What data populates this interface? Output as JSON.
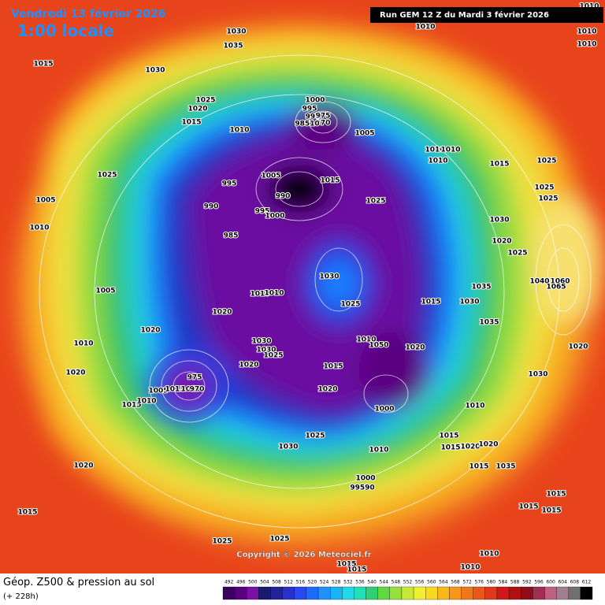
{
  "header": {
    "date": "Vendredi 13 février 2026",
    "time": "1:00 locale",
    "run": "Run GEM 12 Z du Mardi 3 février 2026"
  },
  "map": {
    "copyright": "Copyright © 2026 Meteociel.fr",
    "isobar_labels": [
      "1030",
      "1035",
      "1010",
      "1010",
      "1010",
      "1010",
      "1015",
      "1030",
      "1025",
      "1020",
      "1015",
      "1000",
      "995",
      "990",
      "975",
      "970",
      "98510",
      "1010",
      "1005",
      "1010",
      "1010",
      "1010",
      "1015",
      "1025",
      "1025",
      "995",
      "1005",
      "1015",
      "990",
      "1025",
      "1025",
      "1005",
      "990",
      "995",
      "1000",
      "1025",
      "1010",
      "985",
      "1030",
      "1020",
      "1025",
      "1030",
      "1040",
      "1060",
      "1065",
      "1035",
      "1005",
      "1010",
      "1010",
      "1015",
      "1030",
      "1025",
      "1020",
      "1035",
      "1020",
      "1030",
      "1010",
      "1050",
      "1010",
      "1030",
      "1025",
      "1020",
      "1020",
      "1020",
      "1015",
      "1020",
      "975",
      "1030",
      "1005",
      "1015",
      "1010",
      "970",
      "1020",
      "1015",
      "1010",
      "1000",
      "1010",
      "1025",
      "1015",
      "1015",
      "1020",
      "1020",
      "1030",
      "1010",
      "1015",
      "1035",
      "1020",
      "1000",
      "99590",
      "1015",
      "1015",
      "1015",
      "1015",
      "1025",
      "1025",
      "1010",
      "1015",
      "1015",
      "1010"
    ]
  },
  "footer": {
    "title": "Géop. Z500 & pression au sol",
    "lead": "(+ 228h)"
  },
  "scale": {
    "values": [
      492,
      496,
      500,
      504,
      508,
      512,
      516,
      520,
      524,
      528,
      532,
      536,
      540,
      544,
      548,
      552,
      556,
      560,
      564,
      568,
      572,
      576,
      580,
      584,
      588,
      592,
      596,
      600,
      604,
      608,
      612
    ],
    "colors": [
      "#3a0060",
      "#5a0080",
      "#7a10a8",
      "#1a1a70",
      "#22229a",
      "#2a30c8",
      "#2a48f0",
      "#1e6cff",
      "#1e90ff",
      "#18b4f8",
      "#20d8e8",
      "#20e0b8",
      "#30d070",
      "#60d840",
      "#98e040",
      "#c8e838",
      "#f0f030",
      "#f8d820",
      "#f8b818",
      "#f89818",
      "#f07818",
      "#e85818",
      "#e03818",
      "#d01818",
      "#b01010",
      "#900c18",
      "#a03050",
      "#c06080",
      "#a08090",
      "#707070",
      "#000000"
    ]
  }
}
